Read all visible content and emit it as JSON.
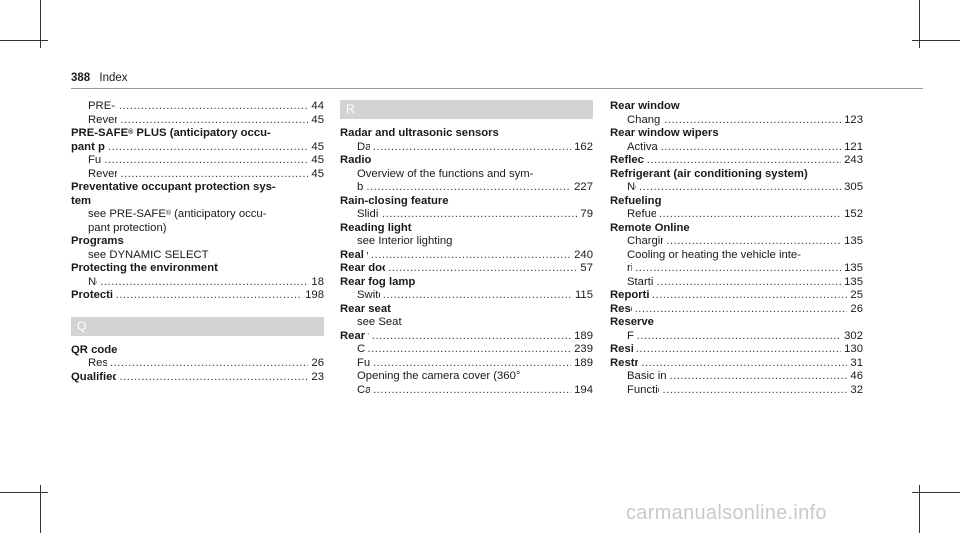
{
  "header": {
    "page_number": "388",
    "section": "Index"
  },
  "columns": [
    {
      "lines": [
        {
          "kind": "sub",
          "text": "PRE-SAFE® Sound",
          "page": "44"
        },
        {
          "kind": "sub",
          "text": "Reversing measures",
          "page": "45"
        },
        {
          "kind": "head-plain",
          "text": "PRE-SAFE® PLUS (anticipatory occu-"
        },
        {
          "kind": "head",
          "text": "pant protection plus)",
          "page": "45"
        },
        {
          "kind": "sub",
          "text": "Function",
          "page": "45"
        },
        {
          "kind": "sub",
          "text": "Reversing measures",
          "page": "45"
        },
        {
          "kind": "head-plain",
          "text": "Preventative occupant protection sys-"
        },
        {
          "kind": "head-plain",
          "text": "tem"
        },
        {
          "kind": "sub-plain",
          "text": "see PRE-SAFE® (anticipatory occu-"
        },
        {
          "kind": "sub-plain",
          "text": "pant protection)"
        },
        {
          "kind": "head-plain",
          "text": "Programs"
        },
        {
          "kind": "sub-plain",
          "text": "see DYNAMIC SELECT"
        },
        {
          "kind": "head-plain",
          "text": "Protecting the environment"
        },
        {
          "kind": "sub",
          "text": "Notes",
          "page": "18"
        },
        {
          "kind": "head",
          "text": "Protection against collision",
          "page": "198"
        },
        {
          "kind": "gap"
        },
        {
          "kind": "letter",
          "text": "Q"
        },
        {
          "kind": "head-plain",
          "text": "QR code"
        },
        {
          "kind": "sub",
          "text": "Rescue card",
          "page": "26"
        },
        {
          "kind": "head",
          "text": "Qualified specialist workshop",
          "page": "23"
        }
      ]
    },
    {
      "lines": [
        {
          "kind": "letter",
          "text": "R"
        },
        {
          "kind": "head-plain",
          "text": "Radar and ultrasonic sensors"
        },
        {
          "kind": "sub",
          "text": "Damage",
          "page": "162"
        },
        {
          "kind": "head-plain",
          "text": "Radio"
        },
        {
          "kind": "sub-plain",
          "text": "Overview of the functions and sym-"
        },
        {
          "kind": "sub",
          "text": "bols",
          "page": "227"
        },
        {
          "kind": "head-plain",
          "text": "Rain-closing feature"
        },
        {
          "kind": "sub",
          "text": "Sliding sunroof",
          "page": "79"
        },
        {
          "kind": "head-plain",
          "text": "Reading light"
        },
        {
          "kind": "sub-plain",
          "text": "see Interior lighting"
        },
        {
          "kind": "head",
          "text": "Real wood (Care)",
          "page": "240"
        },
        {
          "kind": "head",
          "text": "Rear doors (child safety lock)",
          "page": "57"
        },
        {
          "kind": "head-plain",
          "text": "Rear fog lamp"
        },
        {
          "kind": "sub",
          "text": "Switching on/off",
          "page": "115"
        },
        {
          "kind": "head-plain",
          "text": "Rear seat"
        },
        {
          "kind": "sub-plain",
          "text": "see Seat"
        },
        {
          "kind": "head",
          "text": "Rear view camera",
          "page": "189"
        },
        {
          "kind": "sub",
          "text": "Care",
          "page": "239"
        },
        {
          "kind": "sub",
          "text": "Function",
          "page": "189"
        },
        {
          "kind": "sub-plain",
          "text": "Opening the camera cover (360°"
        },
        {
          "kind": "sub",
          "text": "Camera)",
          "page": "194"
        }
      ]
    },
    {
      "lines": [
        {
          "kind": "head-plain",
          "text": "Rear window"
        },
        {
          "kind": "sub",
          "text": "Changing the wiper blade",
          "page": "123"
        },
        {
          "kind": "head-plain",
          "text": "Rear window wipers"
        },
        {
          "kind": "sub",
          "text": "Activating/deactivating",
          "page": "121"
        },
        {
          "kind": "head",
          "text": "Reflective safety vest",
          "page": "243"
        },
        {
          "kind": "head-plain",
          "text": "Refrigerant (air conditioning system)"
        },
        {
          "kind": "sub",
          "text": "Notes",
          "page": "305"
        },
        {
          "kind": "head-plain",
          "text": "Refueling"
        },
        {
          "kind": "sub",
          "text": "Refueling the vehicle",
          "page": "152"
        },
        {
          "kind": "head-plain",
          "text": "Remote Online"
        },
        {
          "kind": "sub",
          "text": "Charging the starter battery",
          "page": "135"
        },
        {
          "kind": "sub-plain",
          "text": "Cooling or heating the vehicle inte-"
        },
        {
          "kind": "sub",
          "text": "rior",
          "page": "135"
        },
        {
          "kind": "sub",
          "text": "Starting the vehicle",
          "page": "135"
        },
        {
          "kind": "head",
          "text": "Reporting safety defects",
          "page": "25"
        },
        {
          "kind": "head",
          "text": "Rescue card",
          "page": "26"
        },
        {
          "kind": "head-plain",
          "text": "Reserve"
        },
        {
          "kind": "sub",
          "text": "Fuel",
          "page": "302"
        },
        {
          "kind": "head",
          "text": "Residual heat",
          "page": "130"
        },
        {
          "kind": "head",
          "text": "Restraint system",
          "page": "31"
        },
        {
          "kind": "sub",
          "text": "Basic instructions for children",
          "page": "46"
        },
        {
          "kind": "sub",
          "text": "Function in an accident",
          "page": "32"
        }
      ]
    }
  ],
  "watermark": "carmanualsonline.info"
}
